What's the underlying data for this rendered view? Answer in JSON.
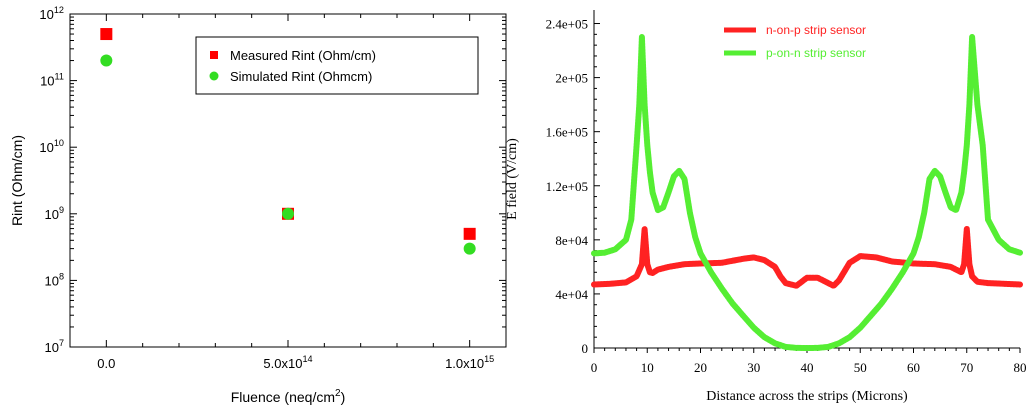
{
  "chart_data": [
    {
      "type": "scatter",
      "title": "",
      "xlabel": "Fluence (neq/cm^2)",
      "ylabel": "Rint (Ohm/cm)",
      "xlim": [
        -100000000000000.0,
        1100000000000000.0
      ],
      "ylim": [
        10000000.0,
        1000000000000.0
      ],
      "yscale": "log",
      "grid": false,
      "legend_position": "top-right",
      "x_ticks": [
        {
          "value": 0,
          "label": "0.0"
        },
        {
          "value": 500000000000000.0,
          "label": "5.0x10",
          "exp": "14"
        },
        {
          "value": 1000000000000000.0,
          "label": "1.0x10",
          "exp": "15"
        }
      ],
      "y_ticks": [
        {
          "value": 10000000.0,
          "label": "10",
          "exp": "7"
        },
        {
          "value": 100000000.0,
          "label": "10",
          "exp": "8"
        },
        {
          "value": 1000000000.0,
          "label": "10",
          "exp": "9"
        },
        {
          "value": 10000000000.0,
          "label": "10",
          "exp": "10"
        },
        {
          "value": 100000000000.0,
          "label": "10",
          "exp": "11"
        },
        {
          "value": 1000000000000.0,
          "label": "10",
          "exp": "12"
        }
      ],
      "series": [
        {
          "name": "Measured Rint (Ohm/cm)",
          "marker": "square",
          "color": "#ff0000",
          "x": [
            0,
            500000000000000.0,
            1000000000000000.0
          ],
          "y": [
            500000000000.0,
            1000000000.0,
            500000000.0
          ]
        },
        {
          "name": "Simulated Rint (Ohmcm)",
          "marker": "circle",
          "color": "#33dd22",
          "x": [
            0,
            500000000000000.0,
            1000000000000000.0
          ],
          "y": [
            200000000000.0,
            1000000000.0,
            300000000.0
          ]
        }
      ]
    },
    {
      "type": "line",
      "title": "",
      "xlabel": "Distance across the strips (Microns)",
      "ylabel": "E field (V/cm)",
      "xlim": [
        0,
        80
      ],
      "ylim": [
        0,
        250000
      ],
      "grid": false,
      "legend_position": "top-center",
      "x_ticks": [
        0,
        10,
        20,
        30,
        40,
        50,
        60,
        70,
        80
      ],
      "y_ticks": [
        {
          "value": 0,
          "label": "0"
        },
        {
          "value": 40000,
          "label": "4e+04"
        },
        {
          "value": 80000,
          "label": "8e+04"
        },
        {
          "value": 120000,
          "label": "1.2e+05"
        },
        {
          "value": 160000,
          "label": "1.6e+05"
        },
        {
          "value": 200000,
          "label": "2e+05"
        },
        {
          "value": 240000,
          "label": "2.4e+05"
        }
      ],
      "series": [
        {
          "name": "n-on-p strip sensor",
          "color": "#ff2222",
          "x": [
            0,
            3,
            6,
            8,
            9,
            9.5,
            10,
            10.5,
            11,
            12,
            14,
            17,
            20,
            24,
            28,
            30,
            32,
            34,
            35,
            36,
            38,
            40,
            42,
            44,
            45,
            46,
            48,
            50,
            53,
            56,
            60,
            64,
            67,
            69,
            69.5,
            70,
            70.5,
            71,
            72,
            74,
            77,
            80
          ],
          "y": [
            47000,
            47500,
            48500,
            53000,
            62000,
            88000,
            62000,
            56000,
            55500,
            58000,
            60000,
            62000,
            62500,
            63000,
            66000,
            67000,
            65000,
            60000,
            53000,
            48000,
            46000,
            52000,
            52000,
            48000,
            46000,
            50000,
            63000,
            68000,
            67000,
            64000,
            62500,
            62000,
            60000,
            56000,
            62000,
            88000,
            62000,
            53000,
            49000,
            48000,
            47500,
            47000
          ]
        },
        {
          "name": "p-on-n strip sensor",
          "color": "#55ee33",
          "x": [
            0,
            2,
            4,
            6,
            7,
            8,
            8.5,
            9,
            9.5,
            10,
            10.5,
            11,
            12,
            13,
            14,
            15,
            16,
            17,
            18,
            19,
            20,
            22,
            24,
            26,
            28,
            30,
            32,
            34,
            36,
            38,
            40,
            42,
            44,
            46,
            48,
            50,
            52,
            54,
            56,
            58,
            60,
            61,
            62,
            63,
            64,
            65,
            66,
            67,
            68,
            69,
            69.5,
            70,
            70.5,
            71,
            72,
            73,
            74,
            76,
            78,
            80
          ],
          "y": [
            70000,
            70500,
            73000,
            80000,
            95000,
            150000,
            180000,
            230000,
            180000,
            150000,
            130000,
            115000,
            102000,
            104000,
            115000,
            127000,
            131000,
            125000,
            100000,
            82000,
            70000,
            56000,
            44000,
            33000,
            24000,
            15000,
            8000,
            3500,
            800,
            100,
            0,
            100,
            800,
            3500,
            8000,
            15000,
            24000,
            33000,
            44000,
            56000,
            70000,
            82000,
            100000,
            125000,
            131000,
            127000,
            115000,
            104000,
            102000,
            115000,
            130000,
            150000,
            180000,
            230000,
            180000,
            150000,
            95000,
            80000,
            73000,
            70500
          ]
        }
      ]
    }
  ]
}
